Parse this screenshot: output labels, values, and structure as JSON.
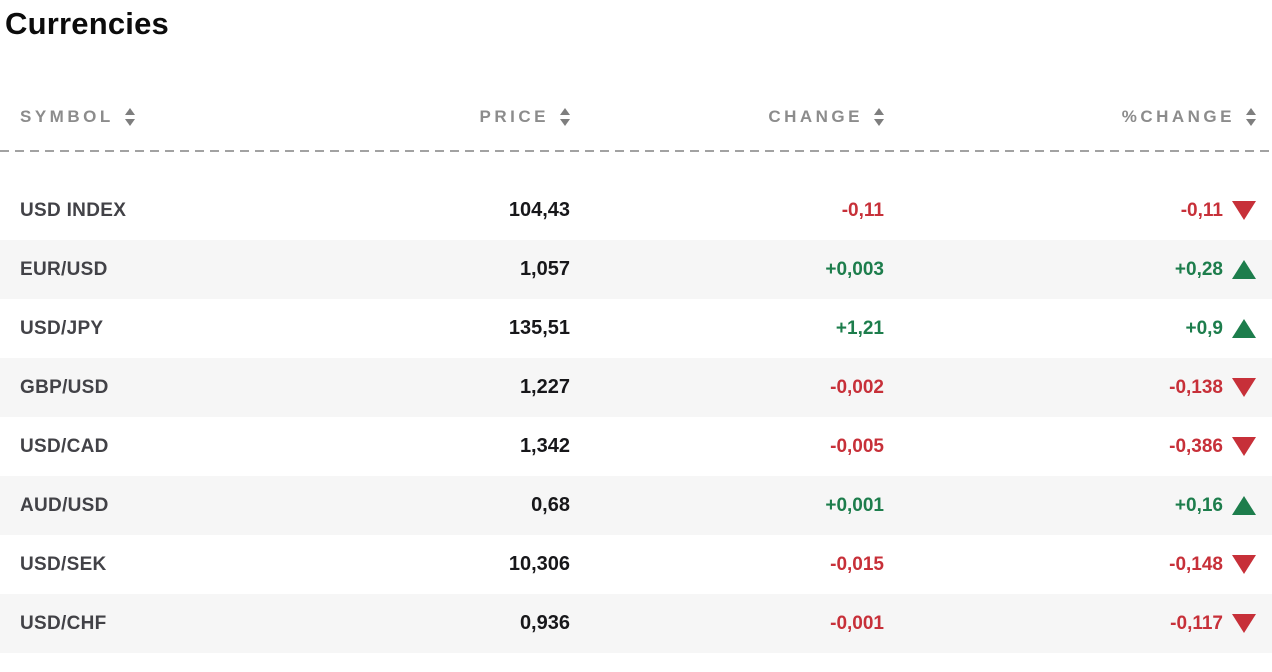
{
  "page": {
    "title": "Currencies"
  },
  "colors": {
    "positive": "#1d7d4c",
    "negative": "#c73039",
    "header_text": "#8c8c8c",
    "zebra_row": "#f6f6f6",
    "symbol_text": "#424247",
    "price_text": "#17171a"
  },
  "icons": {
    "sort": "sort-arrows",
    "trend_up": "up-triangle",
    "trend_down": "down-triangle"
  },
  "table": {
    "columns": [
      {
        "key": "symbol",
        "label": "SYMBOL"
      },
      {
        "key": "price",
        "label": "PRICE"
      },
      {
        "key": "change",
        "label": "CHANGE"
      },
      {
        "key": "pct_change",
        "label": "%CHANGE"
      }
    ],
    "rows": [
      {
        "symbol": "USD INDEX",
        "price": "104,43",
        "change": "-0,11",
        "pct_change": "-0,11",
        "trend": "down"
      },
      {
        "symbol": "EUR/USD",
        "price": "1,057",
        "change": "+0,003",
        "pct_change": "+0,28",
        "trend": "up"
      },
      {
        "symbol": "USD/JPY",
        "price": "135,51",
        "change": "+1,21",
        "pct_change": "+0,9",
        "trend": "up"
      },
      {
        "symbol": "GBP/USD",
        "price": "1,227",
        "change": "-0,002",
        "pct_change": "-0,138",
        "trend": "down"
      },
      {
        "symbol": "USD/CAD",
        "price": "1,342",
        "change": "-0,005",
        "pct_change": "-0,386",
        "trend": "down"
      },
      {
        "symbol": "AUD/USD",
        "price": "0,68",
        "change": "+0,001",
        "pct_change": "+0,16",
        "trend": "up"
      },
      {
        "symbol": "USD/SEK",
        "price": "10,306",
        "change": "-0,015",
        "pct_change": "-0,148",
        "trend": "down"
      },
      {
        "symbol": "USD/CHF",
        "price": "0,936",
        "change": "-0,001",
        "pct_change": "-0,117",
        "trend": "down"
      }
    ]
  }
}
